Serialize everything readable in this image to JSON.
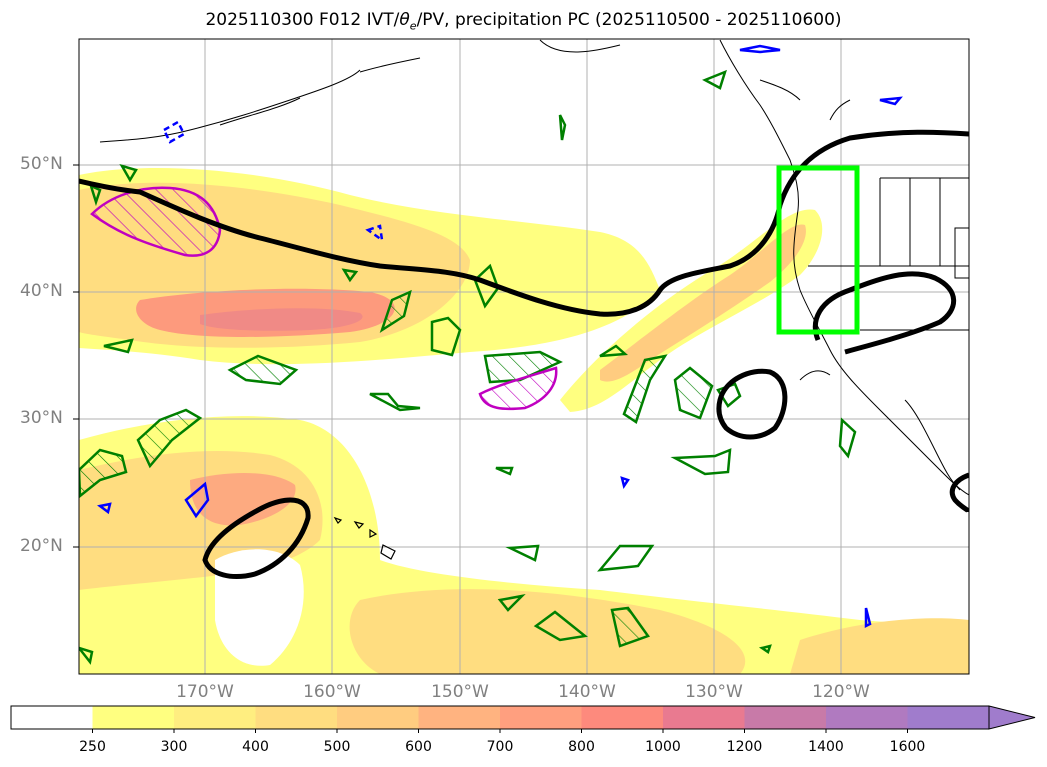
{
  "title_main": "2025110300 F012 IVT/",
  "title_theta": "θ",
  "title_theta_sub": "e",
  "title_rest": "/PV, precipitation PC (2025110500 - 2025110600)",
  "lat_labels": [
    "50°N",
    "40°N",
    "30°N",
    "20°N"
  ],
  "lon_labels": [
    "170°W",
    "160°W",
    "150°W",
    "140°W",
    "130°W",
    "120°W"
  ],
  "colorbar": {
    "levels": [
      "250",
      "300",
      "400",
      "500",
      "600",
      "700",
      "800",
      "1000",
      "1200",
      "1400",
      "1600"
    ],
    "colors": [
      "#ffffff",
      "#ffff80",
      "#ffee80",
      "#ffdd80",
      "#ffcc80",
      "#ffb380",
      "#ff9f7f",
      "#fd8a7d",
      "#e97a90",
      "#c87aa8",
      "#b07ac0",
      "#a07ccc"
    ],
    "extend": "max"
  },
  "colors": {
    "ivt_fill_low": "#ffff80",
    "ivt_fill_mid": "#ffd880",
    "ivt_fill_high": "#fd8a7d",
    "theta_contour": "#000000",
    "pv_contour_green": "#008000",
    "pv_contour_blue": "#0000ff",
    "pv_contour_magenta": "#c000c0",
    "target_box": "#00ff00",
    "grid": "#b0b0b0",
    "tick_labels": "#808080"
  }
}
